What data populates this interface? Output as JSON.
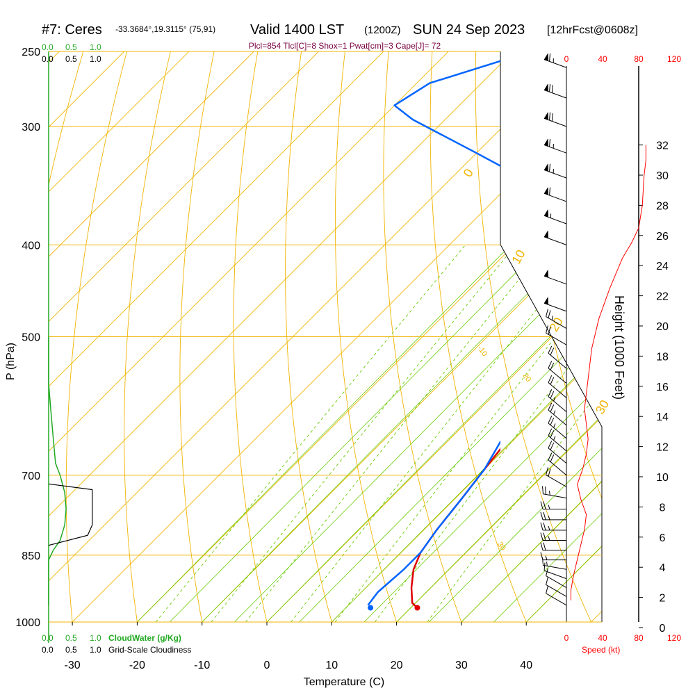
{
  "header": {
    "title_site": "#7: Ceres",
    "title_coords": "-33.3684°,19.3115° (75,91)",
    "title_valid": "Valid 1400 LST",
    "title_z": "(1200Z)",
    "title_date": "SUN 24 Sep 2023",
    "title_fcst": "[12hrFcst@0608z]",
    "params": "Plcl=854 Tlcl[C]=8 Shox=1 Pwat[cm]=3 Cape[J]= 72"
  },
  "colors": {
    "temperature": "#e00000",
    "dewpoint": "#0064ff",
    "parcel": "#780040",
    "isotherm": "#f0b400",
    "mixing_ratio": "#66cc00",
    "cloudwater": "#22aa22",
    "speed_axis": "#ff0000"
  },
  "scales": {
    "top_left_green": [
      "0.0",
      "0.5",
      "1.0"
    ],
    "top_left_black": [
      "0.0",
      "0.5",
      "1.0"
    ],
    "bottom_cloudwater_ticks": [
      "0.0",
      "0.5",
      "1.0"
    ],
    "bottom_cloudwater_label": "CloudWater (g/Kg)",
    "bottom_cloudiness_ticks": [
      "0.0",
      "0.5",
      "1.0"
    ],
    "bottom_cloudiness_label": "Grid-Scale Cloudiness",
    "speed_ticks_top": [
      "0",
      "40",
      "80",
      "120"
    ],
    "speed_ticks_bottom": [
      "0",
      "40",
      "80",
      "120"
    ],
    "speed_label": "Speed (kt)"
  },
  "chart_data": {
    "type": "line",
    "title": "#7: Ceres -33.3684°,19.3115° (75,91) Valid 1400 LST (1200Z) SUN 24 Sep 2023 [12hrFcst@0608z]",
    "xlabel": "Temperature (C)",
    "ylabel": "P (hPa)",
    "y2label": "Height (1000 Feet)",
    "x_ticks": [
      -30,
      -20,
      -10,
      0,
      10,
      20,
      30,
      40
    ],
    "x_tick_labels": [
      "-30",
      "-20",
      "-10",
      "0",
      "10",
      "20",
      "30",
      "40"
    ],
    "xlim": [
      -34,
      46
    ],
    "pressure_ticks": [
      250,
      300,
      400,
      500,
      700,
      850,
      1000
    ],
    "pressure_tick_labels": [
      "250",
      "300",
      "400",
      "500",
      "700",
      "850",
      "1000"
    ],
    "ylim": [
      1000,
      250
    ],
    "height_ticks": [
      0,
      2,
      4,
      6,
      8,
      10,
      12,
      14,
      16,
      18,
      20,
      22,
      24,
      26,
      28,
      30,
      32
    ],
    "height_tick_labels": [
      "0",
      "2",
      "4",
      "6",
      "8",
      "10",
      "12",
      "14",
      "16",
      "18",
      "20",
      "22",
      "24",
      "26",
      "28",
      "30",
      "32"
    ],
    "isotherm_labels": [
      {
        "text": "10",
        "t": 10,
        "p": 300
      },
      {
        "text": "0",
        "t": 0,
        "p": 400
      },
      {
        "text": "-10",
        "t": -10,
        "p": 520
      },
      {
        "text": "20",
        "t": 20,
        "p": 650
      },
      {
        "text": "30",
        "t": 30,
        "p": 870
      }
    ],
    "outer_isotherm_labels": [
      {
        "text": "0",
        "t": 0,
        "p": 340
      },
      {
        "text": "10",
        "t": 10,
        "p": 420
      },
      {
        "text": "20",
        "t": 20,
        "p": 495
      },
      {
        "text": "30",
        "t": 30,
        "p": 605
      }
    ],
    "mixing_ratio_values": [
      1,
      2,
      3,
      5,
      8,
      12,
      20
    ],
    "mixing_ratio_labels": [
      "1",
      "2",
      "3",
      "5",
      "8",
      "12",
      "20"
    ],
    "series": [
      {
        "name": "Temperature",
        "points": [
          [
            21.0,
            966
          ],
          [
            19.5,
            955
          ],
          [
            17.0,
            920
          ],
          [
            14.5,
            880
          ],
          [
            13.0,
            845
          ],
          [
            12.0,
            800
          ],
          [
            11.0,
            740
          ],
          [
            10.0,
            690
          ],
          [
            9.0,
            640
          ],
          [
            8.0,
            590
          ],
          [
            7.5,
            540
          ],
          [
            7.0,
            500
          ],
          [
            6.0,
            470
          ],
          [
            4.5,
            440
          ],
          [
            3.0,
            410
          ],
          [
            1.5,
            380
          ],
          [
            0.0,
            360
          ],
          [
            -2.0,
            340
          ],
          [
            -4.0,
            325
          ],
          [
            -6.0,
            310
          ],
          [
            -8.0,
            300
          ],
          [
            -9.5,
            285
          ],
          [
            -10.0,
            270
          ],
          [
            -10.5,
            255
          ]
        ]
      },
      {
        "name": "Dewpoint",
        "points": [
          [
            13.0,
            960
          ],
          [
            12.5,
            930
          ],
          [
            13.0,
            880
          ],
          [
            13.0,
            845
          ],
          [
            12.0,
            800
          ],
          [
            11.0,
            740
          ],
          [
            10.0,
            690
          ],
          [
            8.0,
            640
          ],
          [
            5.0,
            590
          ],
          [
            2.0,
            565
          ],
          [
            0.5,
            540
          ],
          [
            -1.0,
            510
          ],
          [
            -3.0,
            480
          ],
          [
            -6.0,
            450
          ],
          [
            -9.5,
            430
          ],
          [
            -12.0,
            410
          ],
          [
            -16.0,
            380
          ],
          [
            -21.0,
            360
          ],
          [
            -29.0,
            340
          ],
          [
            -40.0,
            320
          ],
          [
            -55.0,
            295
          ],
          [
            -60.0,
            285
          ],
          [
            -58.0,
            270
          ],
          [
            -50.0,
            255
          ]
        ]
      },
      {
        "name": "Parcel",
        "points": [
          [
            12.0,
            590
          ],
          [
            10.0,
            560
          ],
          [
            8.5,
            530
          ],
          [
            7.5,
            510
          ],
          [
            6.5,
            490
          ],
          [
            5.5,
            470
          ]
        ]
      }
    ],
    "surface_temperature": 21,
    "surface_dewpoint": 14,
    "surface_pressure": 966,
    "cloudwater_profile": [
      [
        0.0,
        500
      ],
      [
        0.0,
        560
      ],
      [
        0.05,
        600
      ],
      [
        0.1,
        640
      ],
      [
        0.15,
        680
      ],
      [
        0.25,
        700
      ],
      [
        0.35,
        730
      ],
      [
        0.38,
        760
      ],
      [
        0.35,
        790
      ],
      [
        0.25,
        820
      ],
      [
        0.1,
        840
      ],
      [
        0.0,
        860
      ],
      [
        0.0,
        960
      ]
    ],
    "cloudiness_profile": [
      [
        0.0,
        715
      ],
      [
        0.95,
        725
      ],
      [
        0.95,
        790
      ],
      [
        0.85,
        810
      ],
      [
        0.0,
        830
      ]
    ],
    "wind_speed_profile": [
      [
        5,
        1.8
      ],
      [
        5,
        2.5
      ],
      [
        8,
        3.5
      ],
      [
        12,
        4.5
      ],
      [
        16,
        5.5
      ],
      [
        20,
        6.5
      ],
      [
        22,
        7.5
      ],
      [
        16,
        8.5
      ],
      [
        12,
        9.5
      ],
      [
        18,
        10.5
      ],
      [
        22,
        11.5
      ],
      [
        24,
        12.5
      ],
      [
        22,
        13.5
      ],
      [
        20,
        14.5
      ],
      [
        22,
        15.5
      ],
      [
        24,
        16.5
      ],
      [
        26,
        17.5
      ],
      [
        28,
        18.5
      ],
      [
        32,
        19.5
      ],
      [
        36,
        20.5
      ],
      [
        42,
        21.5
      ],
      [
        48,
        22.5
      ],
      [
        55,
        23.5
      ],
      [
        62,
        24.5
      ],
      [
        72,
        25.5
      ],
      [
        80,
        26.5
      ],
      [
        84,
        28
      ],
      [
        86,
        30
      ],
      [
        88,
        31
      ],
      [
        88,
        32
      ]
    ],
    "wind_barbs": [
      {
        "p": 960,
        "dir": 300,
        "speed": 10
      },
      {
        "p": 940,
        "dir": 300,
        "speed": 10
      },
      {
        "p": 920,
        "dir": 300,
        "speed": 10
      },
      {
        "p": 900,
        "dir": 290,
        "speed": 10
      },
      {
        "p": 880,
        "dir": 280,
        "speed": 15
      },
      {
        "p": 860,
        "dir": 270,
        "speed": 15
      },
      {
        "p": 840,
        "dir": 270,
        "speed": 20
      },
      {
        "p": 820,
        "dir": 270,
        "speed": 25
      },
      {
        "p": 800,
        "dir": 270,
        "speed": 25
      },
      {
        "p": 780,
        "dir": 270,
        "speed": 25
      },
      {
        "p": 760,
        "dir": 270,
        "speed": 25
      },
      {
        "p": 740,
        "dir": 280,
        "speed": 25
      },
      {
        "p": 720,
        "dir": 300,
        "speed": 20
      },
      {
        "p": 700,
        "dir": 310,
        "speed": 20
      },
      {
        "p": 680,
        "dir": 310,
        "speed": 20
      },
      {
        "p": 660,
        "dir": 310,
        "speed": 25
      },
      {
        "p": 640,
        "dir": 310,
        "speed": 25
      },
      {
        "p": 620,
        "dir": 310,
        "speed": 25
      },
      {
        "p": 600,
        "dir": 310,
        "speed": 25
      },
      {
        "p": 580,
        "dir": 310,
        "speed": 20
      },
      {
        "p": 560,
        "dir": 310,
        "speed": 20
      },
      {
        "p": 540,
        "dir": 310,
        "speed": 20
      },
      {
        "p": 510,
        "dir": 300,
        "speed": 20
      },
      {
        "p": 490,
        "dir": 300,
        "speed": 25
      },
      {
        "p": 470,
        "dir": 290,
        "speed": 50
      },
      {
        "p": 440,
        "dir": 290,
        "speed": 50
      },
      {
        "p": 400,
        "dir": 290,
        "speed": 50
      },
      {
        "p": 380,
        "dir": 290,
        "speed": 55
      },
      {
        "p": 360,
        "dir": 290,
        "speed": 60
      },
      {
        "p": 340,
        "dir": 290,
        "speed": 65
      },
      {
        "p": 320,
        "dir": 290,
        "speed": 65
      },
      {
        "p": 300,
        "dir": 290,
        "speed": 70
      },
      {
        "p": 280,
        "dir": 290,
        "speed": 70
      },
      {
        "p": 260,
        "dir": 290,
        "speed": 65
      }
    ]
  }
}
